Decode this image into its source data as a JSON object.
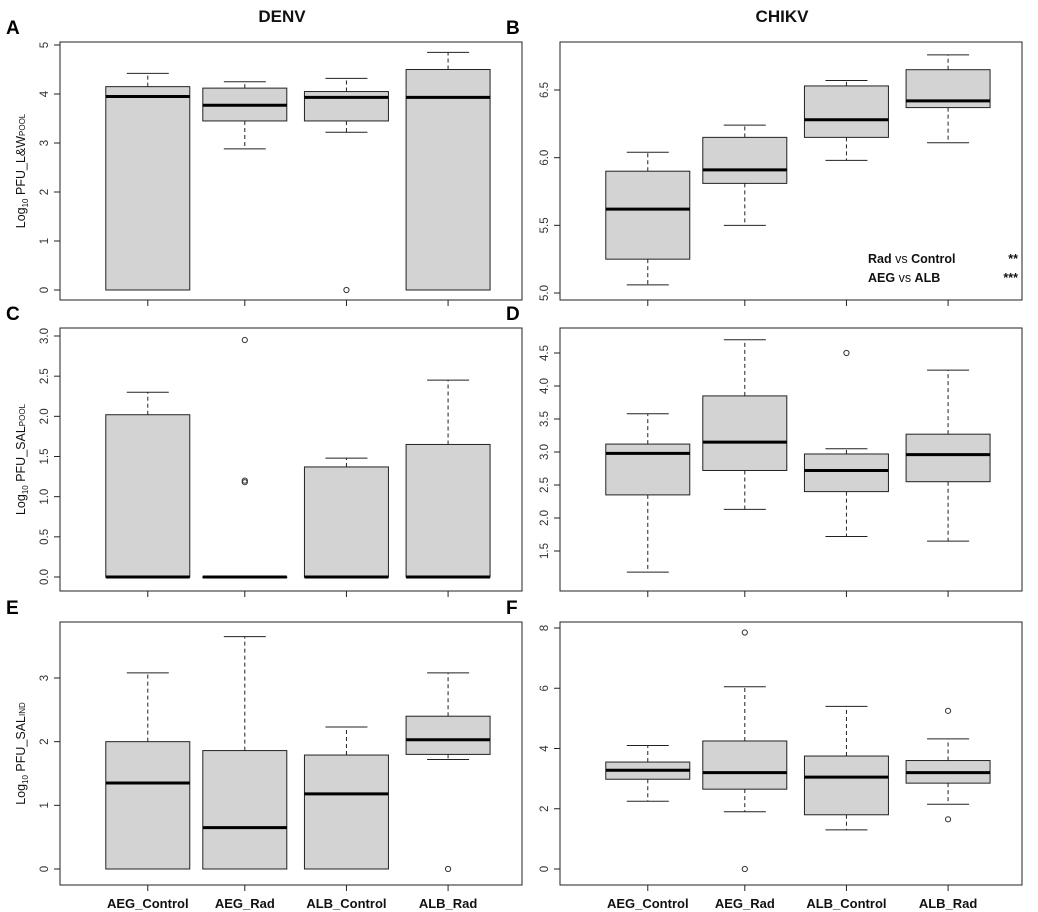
{
  "figure": {
    "column_titles": [
      "DENV",
      "CHIKV"
    ]
  },
  "chart_data": [
    {
      "type": "box",
      "panel": "A",
      "virus": "DENV",
      "ylabel": {
        "prefix": "Log",
        "base": "10",
        "main": " PFU_L&W",
        "sub": "POOL"
      },
      "ylim": [
        0,
        5
      ],
      "yticks": [
        0,
        1,
        2,
        3,
        4,
        5
      ],
      "categories": [
        "AEG_Control",
        "AEG_Rad",
        "ALB_Control",
        "ALB_Rad"
      ],
      "boxes": [
        {
          "whislo": 0,
          "q1": 0,
          "med": 3.95,
          "q3": 4.15,
          "whishi": 4.42,
          "outliers": []
        },
        {
          "whislo": 2.88,
          "q1": 3.45,
          "med": 3.77,
          "q3": 4.12,
          "whishi": 4.25,
          "outliers": []
        },
        {
          "whislo": 3.22,
          "q1": 3.45,
          "med": 3.93,
          "q3": 4.05,
          "whishi": 4.32,
          "outliers": [
            0
          ]
        },
        {
          "whislo": 0,
          "q1": 0,
          "med": 3.93,
          "q3": 4.5,
          "whishi": 4.85,
          "outliers": []
        }
      ]
    },
    {
      "type": "box",
      "panel": "B",
      "virus": "CHIKV",
      "ylabel": null,
      "ylim": [
        5.0,
        6.8
      ],
      "yticks": [
        5.0,
        5.5,
        6.0,
        6.5
      ],
      "categories": [
        "AEG_Control",
        "AEG_Rad",
        "ALB_Control",
        "ALB_Rad"
      ],
      "boxes": [
        {
          "whislo": 5.06,
          "q1": 5.25,
          "med": 5.62,
          "q3": 5.9,
          "whishi": 6.04,
          "outliers": []
        },
        {
          "whislo": 5.5,
          "q1": 5.81,
          "med": 5.91,
          "q3": 6.15,
          "whishi": 6.24,
          "outliers": []
        },
        {
          "whislo": 5.98,
          "q1": 6.15,
          "med": 6.28,
          "q3": 6.53,
          "whishi": 6.57,
          "outliers": []
        },
        {
          "whislo": 6.11,
          "q1": 6.37,
          "med": 6.42,
          "q3": 6.65,
          "whishi": 6.76,
          "outliers": []
        }
      ],
      "annotations": [
        {
          "a": "Rad",
          "vs": " vs ",
          "b": "Control",
          "sig": "**"
        },
        {
          "a": "AEG",
          "vs": " vs ",
          "b": "ALB",
          "sig": "***"
        }
      ]
    },
    {
      "type": "box",
      "panel": "C",
      "virus": "DENV",
      "ylabel": {
        "prefix": "Log",
        "base": "10",
        "main": " PFU_SAL",
        "sub": "POOL"
      },
      "ylim": [
        0,
        3.0
      ],
      "yticks": [
        0.0,
        0.5,
        1.0,
        1.5,
        2.0,
        2.5,
        3.0
      ],
      "categories": [
        "AEG_Control",
        "AEG_Rad",
        "ALB_Control",
        "ALB_Rad"
      ],
      "boxes": [
        {
          "whislo": 0,
          "q1": 0,
          "med": 0,
          "q3": 2.02,
          "whishi": 2.3,
          "outliers": []
        },
        {
          "whislo": 0,
          "q1": 0,
          "med": 0,
          "q3": 0,
          "whishi": 0,
          "outliers": [
            2.95,
            1.2,
            1.18
          ]
        },
        {
          "whislo": 0,
          "q1": 0,
          "med": 0,
          "q3": 1.37,
          "whishi": 1.48,
          "outliers": []
        },
        {
          "whislo": 0,
          "q1": 0,
          "med": 0,
          "q3": 1.65,
          "whishi": 2.45,
          "outliers": []
        }
      ]
    },
    {
      "type": "box",
      "panel": "D",
      "virus": "CHIKV",
      "ylabel": null,
      "ylim": [
        1.0,
        4.7
      ],
      "yticks": [
        1.5,
        2.0,
        2.5,
        3.0,
        3.5,
        4.0,
        4.5
      ],
      "categories": [
        "AEG_Control",
        "AEG_Rad",
        "ALB_Control",
        "ALB_Rad"
      ],
      "boxes": [
        {
          "whislo": 1.18,
          "q1": 2.35,
          "med": 2.98,
          "q3": 3.12,
          "whishi": 3.58,
          "outliers": []
        },
        {
          "whislo": 2.13,
          "q1": 2.72,
          "med": 3.15,
          "q3": 3.85,
          "whishi": 4.7,
          "outliers": []
        },
        {
          "whislo": 1.72,
          "q1": 2.4,
          "med": 2.72,
          "q3": 2.97,
          "whishi": 3.05,
          "outliers": [
            4.5
          ]
        },
        {
          "whislo": 1.65,
          "q1": 2.55,
          "med": 2.96,
          "q3": 3.27,
          "whishi": 4.24,
          "outliers": []
        }
      ]
    },
    {
      "type": "box",
      "panel": "E",
      "virus": "DENV",
      "ylabel": {
        "prefix": "Log",
        "base": "10",
        "main": " PFU_SAL",
        "sub": "IND"
      },
      "ylim": [
        0,
        3.7
      ],
      "yticks": [
        0,
        1,
        2,
        3
      ],
      "categories": [
        "AEG_Control",
        "AEG_Rad",
        "ALB_Control",
        "ALB_Rad"
      ],
      "boxes": [
        {
          "whislo": 0,
          "q1": 0,
          "med": 1.35,
          "q3": 2.0,
          "whishi": 3.08,
          "outliers": []
        },
        {
          "whislo": 0,
          "q1": 0,
          "med": 0.65,
          "q3": 1.86,
          "whishi": 3.65,
          "outliers": []
        },
        {
          "whislo": 0,
          "q1": 0,
          "med": 1.18,
          "q3": 1.79,
          "whishi": 2.23,
          "outliers": []
        },
        {
          "whislo": 1.72,
          "q1": 1.8,
          "med": 2.03,
          "q3": 2.4,
          "whishi": 3.08,
          "outliers": [
            0
          ]
        }
      ]
    },
    {
      "type": "box",
      "panel": "F",
      "virus": "CHIKV",
      "ylabel": null,
      "ylim": [
        0,
        8
      ],
      "yticks": [
        0,
        2,
        4,
        6,
        8
      ],
      "categories": [
        "AEG_Control",
        "AEG_Rad",
        "ALB_Control",
        "ALB_Rad"
      ],
      "boxes": [
        {
          "whislo": 2.25,
          "q1": 2.98,
          "med": 3.28,
          "q3": 3.55,
          "whishi": 4.1,
          "outliers": []
        },
        {
          "whislo": 1.9,
          "q1": 2.65,
          "med": 3.2,
          "q3": 4.25,
          "whishi": 6.05,
          "outliers": [
            7.85,
            0
          ]
        },
        {
          "whislo": 1.3,
          "q1": 1.8,
          "med": 3.05,
          "q3": 3.75,
          "whishi": 5.4,
          "outliers": []
        },
        {
          "whislo": 2.15,
          "q1": 2.85,
          "med": 3.2,
          "q3": 3.6,
          "whishi": 4.32,
          "outliers": [
            5.25,
            1.65
          ]
        }
      ]
    }
  ]
}
